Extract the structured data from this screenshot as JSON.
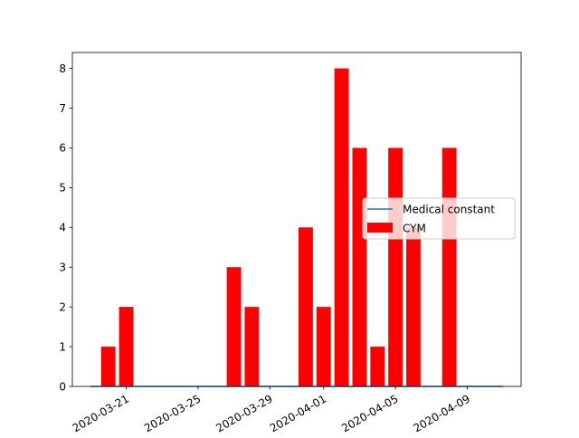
{
  "chart_data": {
    "type": "bar",
    "x": [
      "2020-03-19",
      "2020-03-20",
      "2020-03-21",
      "2020-03-22",
      "2020-03-23",
      "2020-03-24",
      "2020-03-25",
      "2020-03-26",
      "2020-03-27",
      "2020-03-28",
      "2020-03-29",
      "2020-03-30",
      "2020-03-31",
      "2020-04-01",
      "2020-04-02",
      "2020-04-03",
      "2020-04-04",
      "2020-04-05",
      "2020-04-06",
      "2020-04-07",
      "2020-04-08",
      "2020-04-09",
      "2020-04-10",
      "2020-04-11"
    ],
    "series": [
      {
        "name": "CYM",
        "kind": "bar",
        "color": "#ff0000",
        "values": [
          0,
          1,
          2,
          0,
          0,
          0,
          0,
          0,
          3,
          2,
          0,
          0,
          4,
          2,
          8,
          6,
          1,
          6,
          4,
          0,
          6,
          0,
          0,
          0
        ]
      },
      {
        "name": "Medical constant",
        "kind": "line",
        "color": "#1f77b4",
        "values": [
          0,
          0,
          0,
          0,
          0,
          0,
          0,
          0,
          0,
          0,
          0,
          0,
          0,
          0,
          0,
          0,
          0,
          0,
          0,
          0,
          0,
          0,
          0,
          0
        ]
      }
    ],
    "xticks": [
      "2020-03-21",
      "2020-03-25",
      "2020-03-29",
      "2020-04-01",
      "2020-04-05",
      "2020-04-09"
    ],
    "yticks": [
      0,
      1,
      2,
      3,
      4,
      5,
      6,
      7,
      8
    ],
    "ylim": [
      0,
      8.4
    ],
    "xlim": [
      "2020-03-18",
      "2020-04-12"
    ],
    "xlabel": "",
    "ylabel": "",
    "title": "",
    "grid": false,
    "legend_position": "center-right"
  }
}
